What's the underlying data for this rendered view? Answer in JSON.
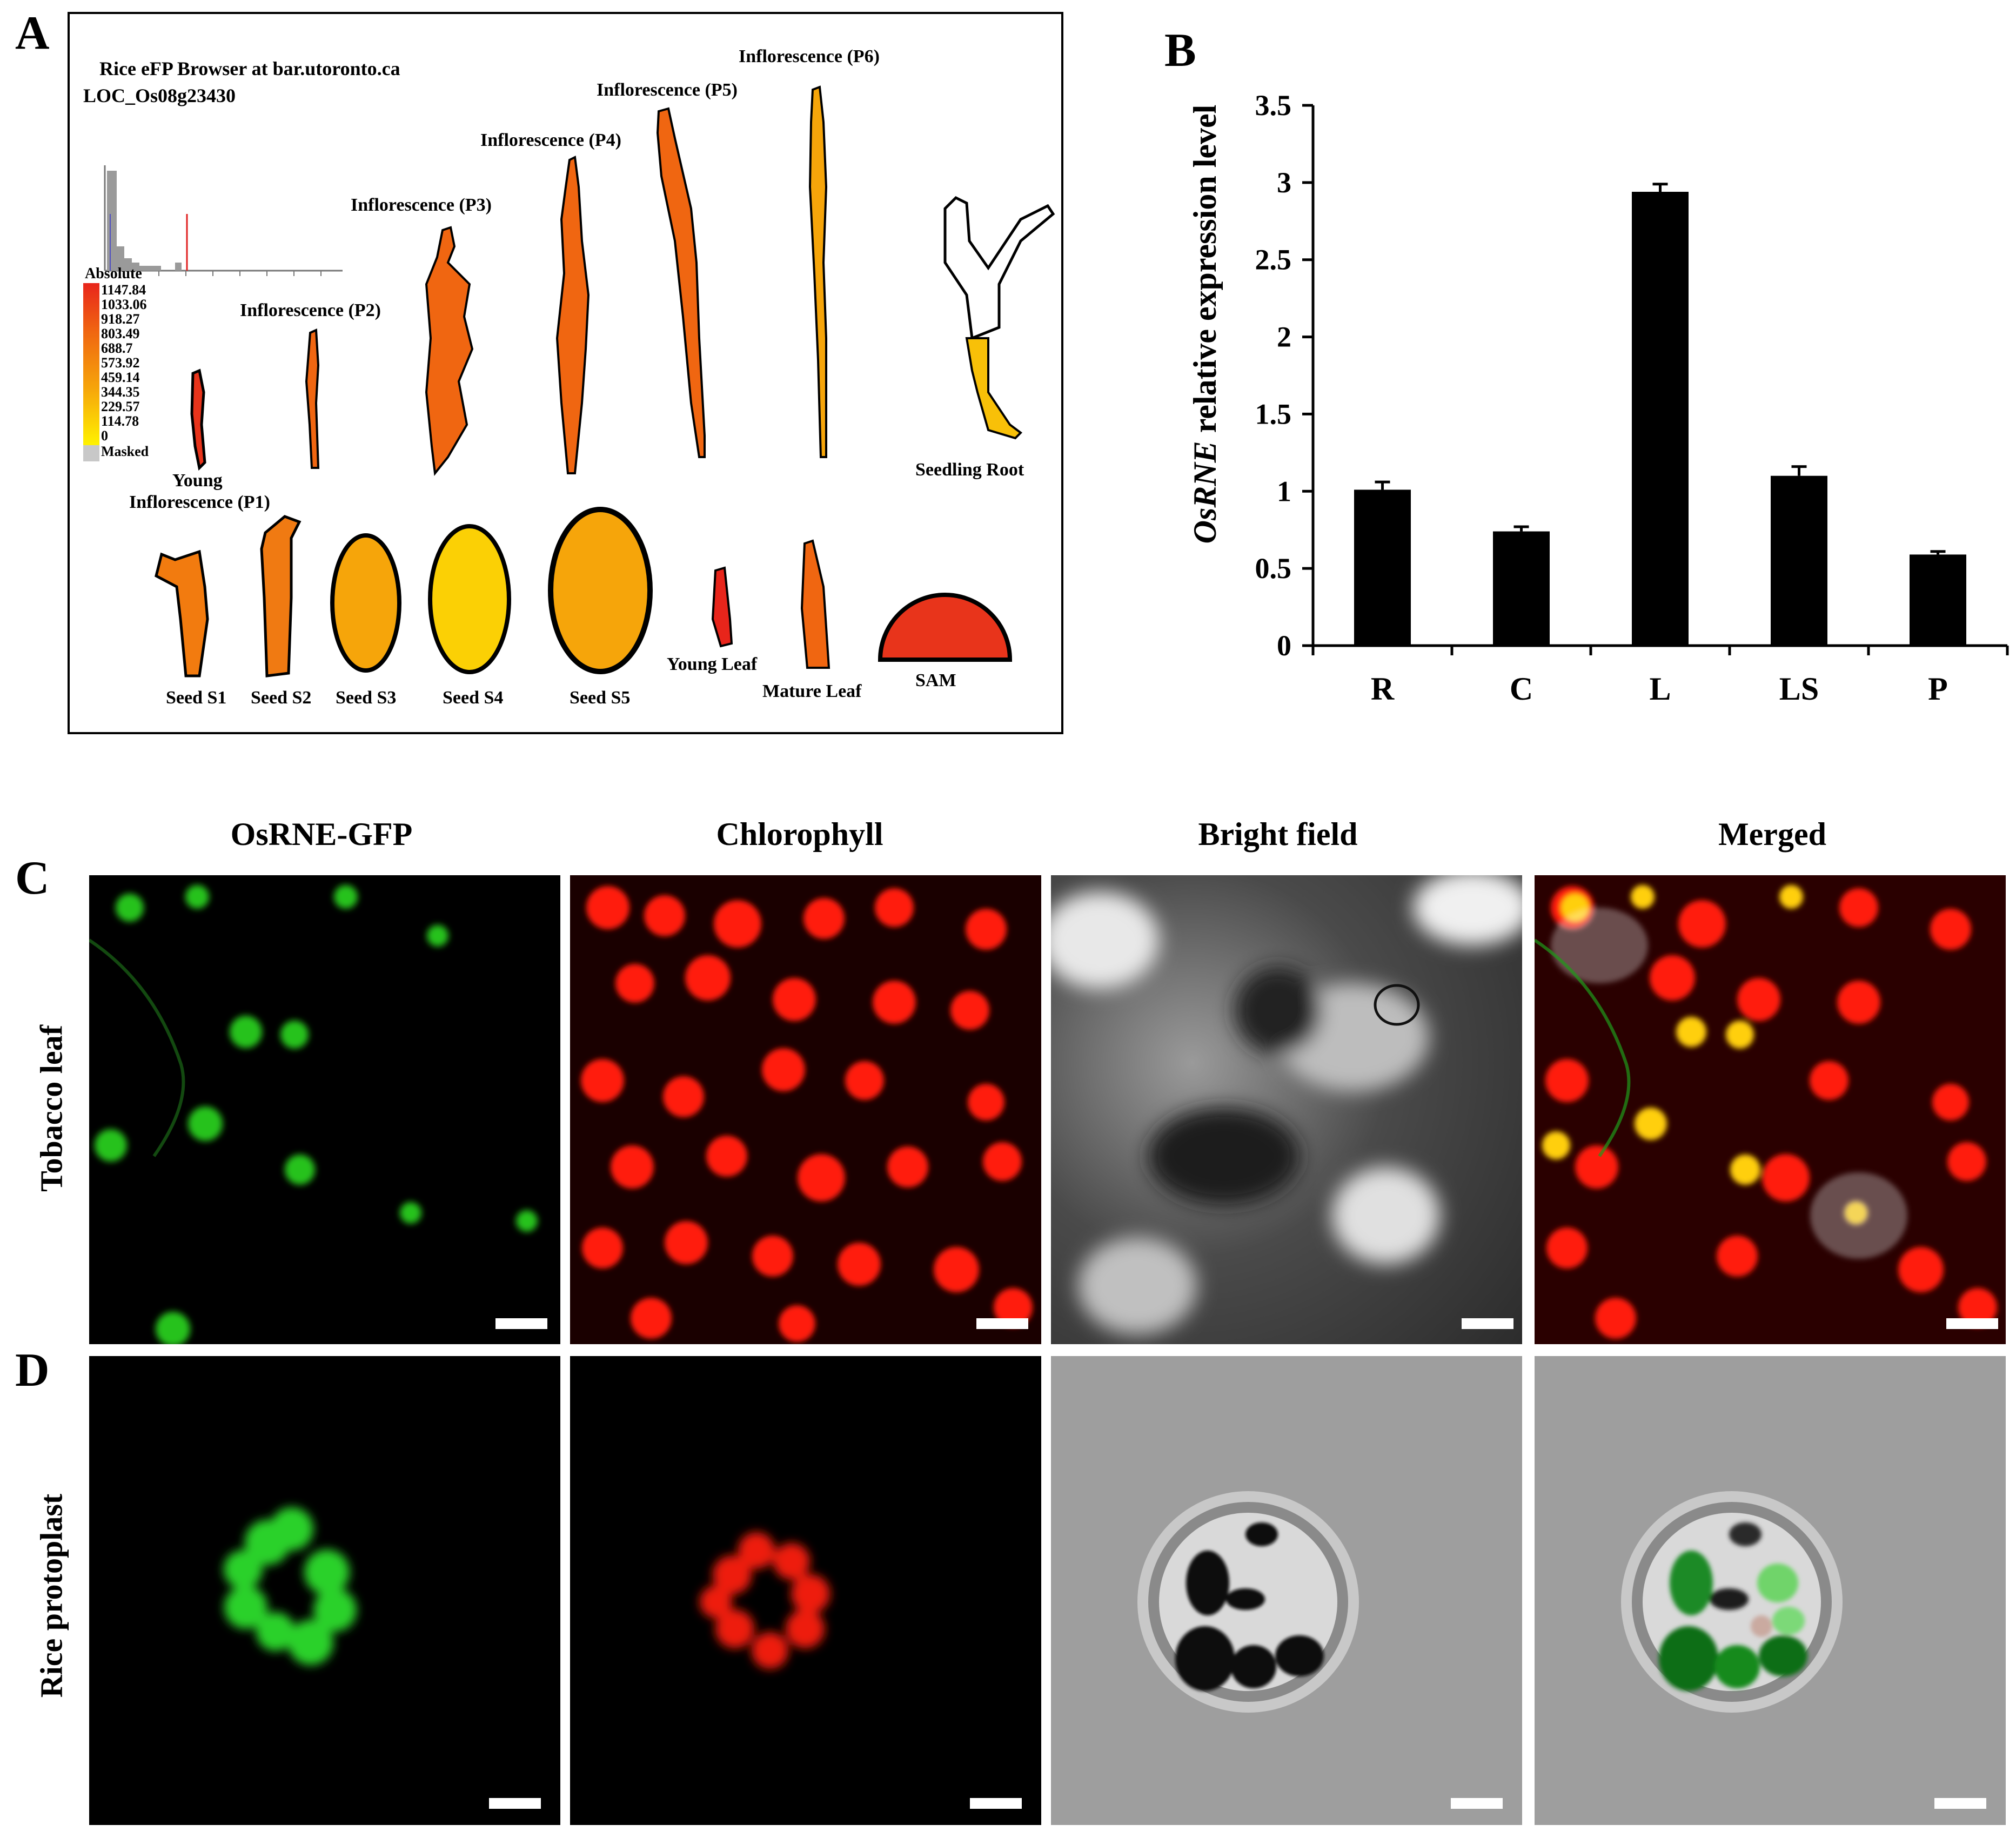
{
  "figure": {
    "panel_letters": [
      "A",
      "B",
      "C",
      "D"
    ]
  },
  "panel_a": {
    "header_line1": "Rice eFP Browser at bar.utoronto.ca",
    "header_line2": "LOC_Os08g23430",
    "legend_title": "Absolute",
    "legend_values": [
      "1147.84",
      "1033.06",
      "918.27",
      "803.49",
      "688.7",
      "573.92",
      "459.14",
      "344.35",
      "229.57",
      "114.78",
      "0",
      "Masked"
    ],
    "legend_colors": [
      "#e8251b",
      "#eb3a17",
      "#ee5014",
      "#f06611",
      "#f27b0f",
      "#f4900c",
      "#f6a50a",
      "#f8ba08",
      "#fbd005",
      "#fde503",
      "#fff200",
      "#c8c8c8"
    ],
    "tissues": {
      "young_inflorescence_line1": "Young",
      "young_inflorescence_line2": "Inflorescence (P1)",
      "p2": "Inflorescence (P2)",
      "p3": "Inflorescence (P3)",
      "p4": "Inflorescence (P4)",
      "p5": "Inflorescence (P5)",
      "p6": "Inflorescence (P6)",
      "seedling_root": "Seedling Root",
      "seed_s1": "Seed S1",
      "seed_s2": "Seed S2",
      "seed_s3": "Seed S3",
      "seed_s4": "Seed S4",
      "seed_s5": "Seed S5",
      "young_leaf": "Young Leaf",
      "mature_leaf": "Mature Leaf",
      "sam": "SAM"
    }
  },
  "chart_data": {
    "type": "bar",
    "categories": [
      "R",
      "C",
      "L",
      "LS",
      "P"
    ],
    "values": [
      1.01,
      0.74,
      2.94,
      1.1,
      0.59
    ],
    "errors": [
      0.05,
      0.03,
      0.05,
      0.06,
      0.02
    ],
    "ylabel_italic": "OsRNE",
    "ylabel_rest": " relative expression level",
    "ylim": [
      0,
      3.5
    ],
    "yticks": [
      "0",
      "0.5",
      "1",
      "1.5",
      "2",
      "2.5",
      "3",
      "3.5"
    ],
    "bar_color": "#000000",
    "grid": false
  },
  "panel_cd": {
    "columns": [
      "OsRNE-GFP",
      "Chlorophyll",
      "Bright field",
      "Merged"
    ],
    "rows": [
      "Tobacco leaf",
      "Rice protoplast"
    ]
  }
}
